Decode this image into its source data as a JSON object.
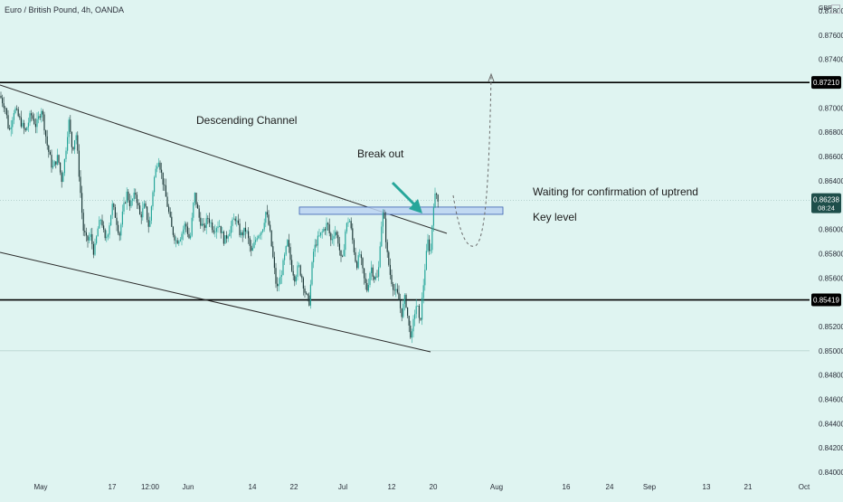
{
  "header": {
    "symbol_title": "Euro / British Pound, 4h, OANDA",
    "currency": "GBP"
  },
  "colors": {
    "background": "#dff4f1",
    "candle_up": "#26a69a",
    "candle_down": "#1e3a3a",
    "arrow": "#26a69a",
    "key_zone_fill": "#bcd3f2",
    "key_zone_stroke": "#3a5fb0",
    "price_tag_black": "#000000",
    "price_tag_teal": "#1e4e4a"
  },
  "chart_data": {
    "type": "candlestick",
    "title": "Euro / British Pound, 4h, OANDA",
    "y_axis": {
      "ticks": [
        "0.87800",
        "0.87600",
        "0.87400",
        "0.87210",
        "0.87000",
        "0.86800",
        "0.86600",
        "0.86400",
        "0.86238",
        "0.86000",
        "0.85800",
        "0.85600",
        "0.85419",
        "0.85200",
        "0.85000",
        "0.84800",
        "0.84600",
        "0.84400",
        "0.84200",
        "0.84000"
      ],
      "range": [
        0.8396,
        0.8787
      ]
    },
    "x_axis": {
      "ticks": [
        "May",
        "17",
        "12:00",
        "Jun",
        "14",
        "22",
        "Jul",
        "12",
        "20",
        "Aug",
        "16",
        "24",
        "Sep",
        "13",
        "21",
        "Oct"
      ]
    },
    "horizontal_levels": [
      {
        "price": 0.8721,
        "label": "0.87210"
      },
      {
        "price": 0.85419,
        "label": "0.85419"
      }
    ],
    "current_price": {
      "price": 0.86238,
      "label": "0.86238",
      "countdown": "08:24"
    },
    "key_level_zone": {
      "low": 0.8612,
      "high": 0.8618
    },
    "close_path": [
      [
        0,
        0.871
      ],
      [
        6,
        0.87
      ],
      [
        10,
        0.868
      ],
      [
        16,
        0.87
      ],
      [
        22,
        0.869
      ],
      [
        28,
        0.868
      ],
      [
        34,
        0.8695
      ],
      [
        40,
        0.8685
      ],
      [
        46,
        0.87
      ],
      [
        52,
        0.867
      ],
      [
        58,
        0.865
      ],
      [
        64,
        0.866
      ],
      [
        68,
        0.864
      ],
      [
        72,
        0.866
      ],
      [
        76,
        0.869
      ],
      [
        80,
        0.8665
      ],
      [
        84,
        0.868
      ],
      [
        88,
        0.864
      ],
      [
        92,
        0.86
      ],
      [
        96,
        0.859
      ],
      [
        100,
        0.8595
      ],
      [
        104,
        0.858
      ],
      [
        108,
        0.86
      ],
      [
        112,
        0.861
      ],
      [
        116,
        0.859
      ],
      [
        120,
        0.86
      ],
      [
        124,
        0.862
      ],
      [
        128,
        0.861
      ],
      [
        132,
        0.8595
      ],
      [
        136,
        0.8615
      ],
      [
        140,
        0.863
      ],
      [
        144,
        0.862
      ],
      [
        150,
        0.863
      ],
      [
        155,
        0.861
      ],
      [
        160,
        0.862
      ],
      [
        165,
        0.86
      ],
      [
        170,
        0.864
      ],
      [
        175,
        0.866
      ],
      [
        180,
        0.864
      ],
      [
        185,
        0.862
      ],
      [
        190,
        0.86
      ],
      [
        195,
        0.859
      ],
      [
        200,
        0.8595
      ],
      [
        205,
        0.8605
      ],
      [
        210,
        0.859
      ],
      [
        215,
        0.863
      ],
      [
        220,
        0.861
      ],
      [
        225,
        0.86
      ],
      [
        230,
        0.861
      ],
      [
        236,
        0.86
      ],
      [
        242,
        0.8605
      ],
      [
        248,
        0.859
      ],
      [
        254,
        0.86
      ],
      [
        260,
        0.861
      ],
      [
        266,
        0.8595
      ],
      [
        272,
        0.86
      ],
      [
        278,
        0.858
      ],
      [
        284,
        0.8595
      ],
      [
        290,
        0.86
      ],
      [
        294,
        0.8615
      ],
      [
        298,
        0.86
      ],
      [
        302,
        0.8575
      ],
      [
        306,
        0.855
      ],
      [
        310,
        0.856
      ],
      [
        314,
        0.8575
      ],
      [
        318,
        0.859
      ],
      [
        322,
        0.857
      ],
      [
        326,
        0.856
      ],
      [
        330,
        0.857
      ],
      [
        334,
        0.856
      ],
      [
        338,
        0.8545
      ],
      [
        342,
        0.854
      ],
      [
        346,
        0.858
      ],
      [
        350,
        0.859
      ],
      [
        354,
        0.8595
      ],
      [
        358,
        0.86
      ],
      [
        362,
        0.8605
      ],
      [
        366,
        0.859
      ],
      [
        370,
        0.86
      ],
      [
        374,
        0.859
      ],
      [
        378,
        0.857
      ],
      [
        382,
        0.86
      ],
      [
        386,
        0.861
      ],
      [
        390,
        0.859
      ],
      [
        394,
        0.857
      ],
      [
        398,
        0.858
      ],
      [
        402,
        0.856
      ],
      [
        406,
        0.855
      ],
      [
        410,
        0.857
      ],
      [
        414,
        0.856
      ],
      [
        418,
        0.856
      ],
      [
        421,
        0.86
      ],
      [
        424,
        0.8615
      ],
      [
        428,
        0.858
      ],
      [
        432,
        0.856
      ],
      [
        436,
        0.855
      ],
      [
        440,
        0.8545
      ],
      [
        444,
        0.853
      ],
      [
        448,
        0.8545
      ],
      [
        452,
        0.852
      ],
      [
        455,
        0.851
      ],
      [
        458,
        0.853
      ],
      [
        461,
        0.854
      ],
      [
        464,
        0.852
      ],
      [
        467,
        0.8545
      ],
      [
        470,
        0.857
      ],
      [
        473,
        0.859
      ],
      [
        476,
        0.858
      ],
      [
        479,
        0.862
      ],
      [
        482,
        0.863
      ],
      [
        485,
        0.8624
      ]
    ],
    "annotations": [
      {
        "text": "Descending Channel"
      },
      {
        "text": "Break out"
      },
      {
        "text": "Waiting for confirmation of uptrend"
      },
      {
        "text": "Key level"
      }
    ]
  }
}
